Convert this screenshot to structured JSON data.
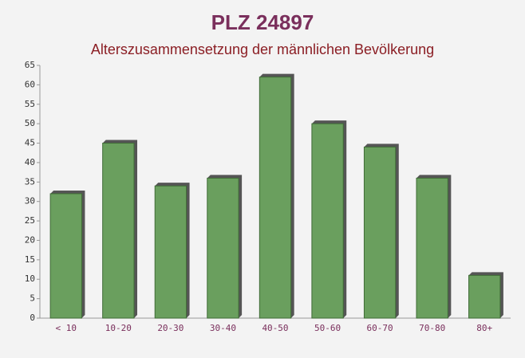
{
  "chart_data": {
    "type": "bar",
    "title": "PLZ 24897",
    "subtitle": "Alterszusammensetzung der männlichen Bevölkerung",
    "categories": [
      "< 10",
      "10-20",
      "20-30",
      "30-40",
      "40-50",
      "50-60",
      "60-70",
      "70-80",
      "80+"
    ],
    "values": [
      32,
      45,
      34,
      36,
      62,
      50,
      44,
      36,
      11
    ],
    "color": "#6a9f5e",
    "ylim": [
      0,
      65
    ],
    "yticks": [
      0,
      5,
      10,
      15,
      20,
      25,
      30,
      35,
      40,
      45,
      50,
      55,
      60,
      65
    ],
    "grid": false
  }
}
